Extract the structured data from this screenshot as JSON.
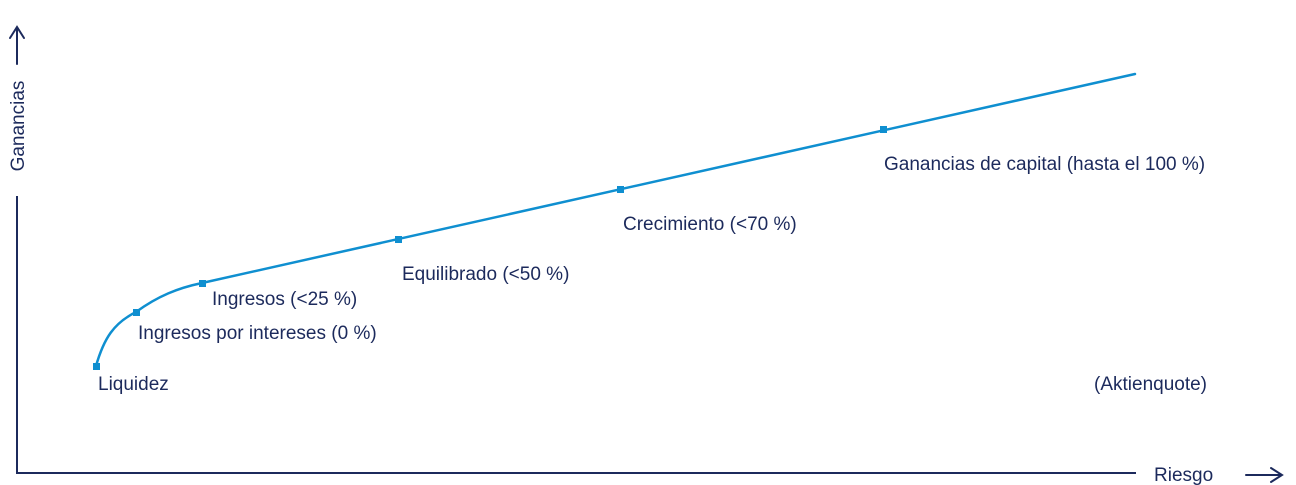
{
  "colors": {
    "axis": "#1c2a5c",
    "curve": "#0f8fd0",
    "label": "#1c2a5c"
  },
  "axes": {
    "y_label": "Ganancias",
    "x_label": "Riesgo"
  },
  "curve_points": [
    {
      "name": "point-liquidez",
      "label": "Liquidez"
    },
    {
      "name": "point-ingresos-por-intereses",
      "label": "Ingresos por intereses (0 %)"
    },
    {
      "name": "point-ingresos",
      "label": "Ingresos (<25 %)"
    },
    {
      "name": "point-equilibrado",
      "label": "Equilibrado (<50 %)"
    },
    {
      "name": "point-crecimiento",
      "label": "Crecimiento (<70 %)"
    },
    {
      "name": "point-ganancias-de-capital",
      "label": "Ganancias de capital (hasta el 100 %)"
    }
  ],
  "note": "(Aktienquote)"
}
